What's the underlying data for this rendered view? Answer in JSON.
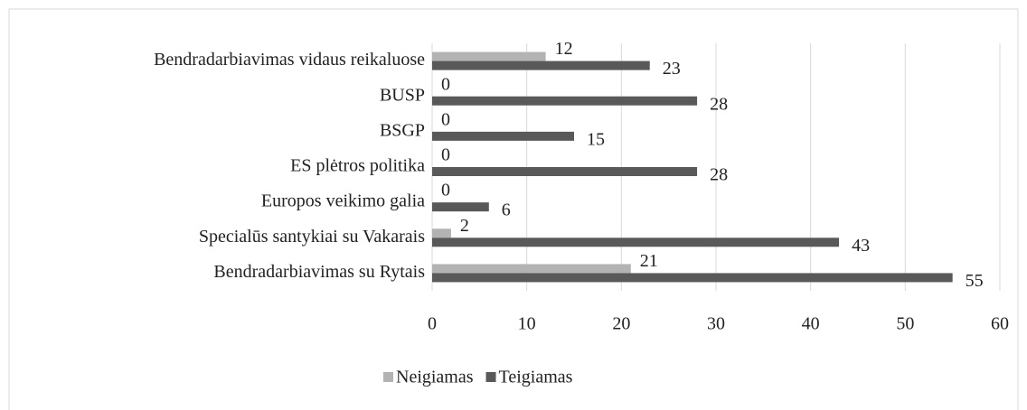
{
  "chart_data": {
    "type": "bar",
    "orientation": "horizontal",
    "categories": [
      "Bendradarbiavimas vidaus reikaluose",
      "BUSP",
      "BSGP",
      "ES plėtros politika",
      "Europos veikimo galia",
      "Specialūs santykiai su Vakarais",
      "Bendradarbiavimas su Rytais"
    ],
    "series": [
      {
        "name": "Neigiamas",
        "color": "#b3b3b3",
        "values": [
          12,
          0,
          0,
          0,
          0,
          2,
          21
        ]
      },
      {
        "name": "Teigiamas",
        "color": "#595959",
        "values": [
          23,
          28,
          15,
          28,
          6,
          43,
          55
        ]
      }
    ],
    "xlim": [
      0,
      60
    ],
    "xticks": [
      0,
      10,
      20,
      30,
      40,
      50,
      60
    ],
    "grid": true,
    "legend": "bottom"
  }
}
